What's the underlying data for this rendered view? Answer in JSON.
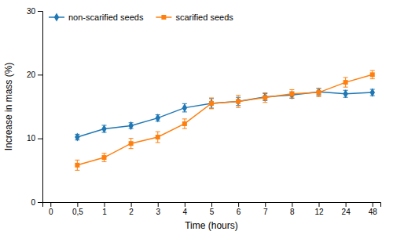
{
  "chart_data": {
    "type": "line",
    "xlabel": "Time (hours)",
    "ylabel": "Increase in mass (%)",
    "categories": [
      "0",
      "0,5",
      "1",
      "2",
      "3",
      "4",
      "5",
      "6",
      "7",
      "8",
      "12",
      "24",
      "48"
    ],
    "series": [
      {
        "name": "non-scarified seeds",
        "marker": "diamond",
        "values": [
          null,
          10.2,
          11.5,
          12.0,
          13.2,
          14.8,
          15.5,
          15.8,
          16.5,
          16.8,
          17.3,
          17.0,
          17.2
        ],
        "error": [
          null,
          0.45,
          0.55,
          0.45,
          0.5,
          0.65,
          0.75,
          0.65,
          0.55,
          0.5,
          0.55,
          0.55,
          0.5
        ]
      },
      {
        "name": "scarified seeds",
        "marker": "square",
        "values": [
          null,
          5.8,
          7.0,
          9.2,
          10.2,
          12.3,
          15.5,
          15.8,
          16.4,
          17.0,
          17.2,
          18.8,
          20.0
        ],
        "error": [
          null,
          0.8,
          0.65,
          0.8,
          0.85,
          0.75,
          0.85,
          0.95,
          0.75,
          0.65,
          0.65,
          0.75,
          0.65
        ]
      }
    ],
    "ylim": [
      0,
      30
    ],
    "yticks": [
      0,
      10,
      20,
      30
    ],
    "legend": "upper left",
    "grid": false
  }
}
